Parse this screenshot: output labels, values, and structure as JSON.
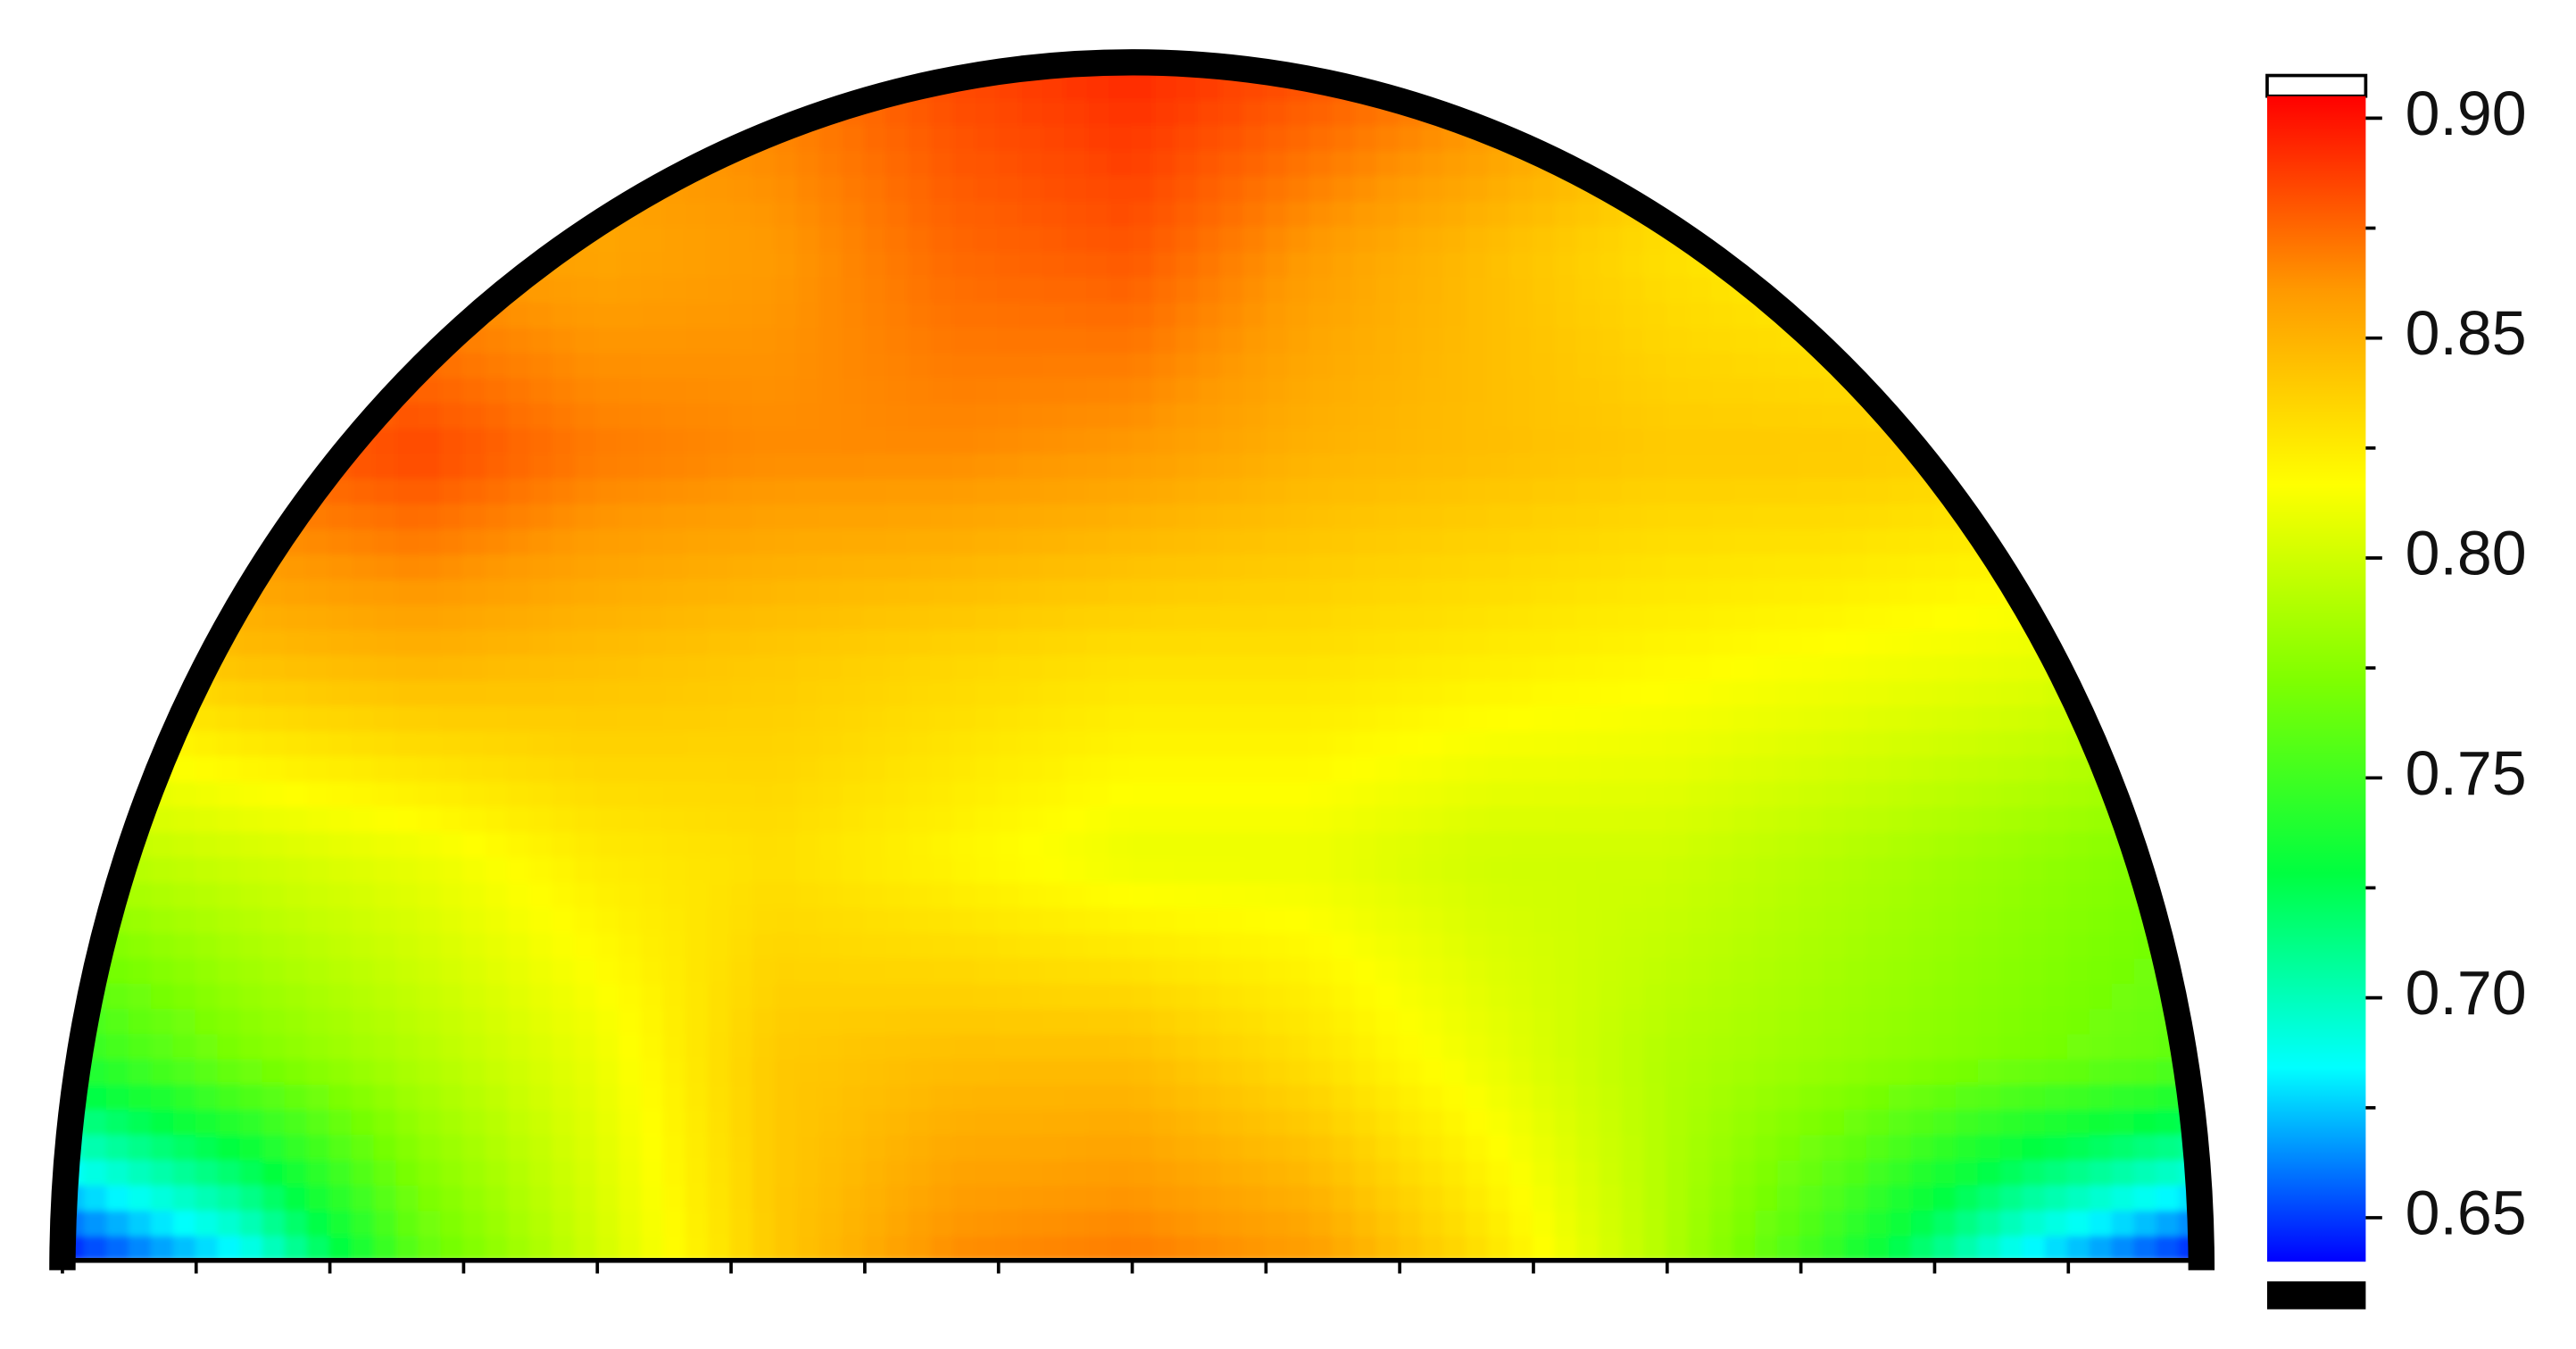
{
  "chart_data": {
    "type": "contour",
    "z": [
      [
        0.64,
        0.68,
        0.76,
        0.8,
        0.84,
        0.865,
        0.87,
        0.86,
        0.83,
        0.79,
        0.74,
        0.68,
        0.64
      ],
      [
        0.74,
        0.77,
        0.79,
        0.81,
        0.84,
        0.845,
        0.845,
        0.83,
        0.81,
        0.79,
        0.78,
        0.77,
        0.76
      ],
      [
        0.79,
        0.8,
        0.81,
        0.825,
        0.83,
        0.82,
        0.81,
        0.81,
        0.8,
        0.8,
        0.79,
        0.78,
        0.77
      ],
      [
        0.83,
        0.845,
        0.85,
        0.845,
        0.84,
        0.835,
        0.83,
        0.83,
        0.825,
        0.82,
        0.815,
        0.81,
        0.8
      ],
      [
        0.86,
        0.875,
        0.885,
        0.87,
        0.865,
        0.865,
        0.86,
        0.85,
        0.845,
        0.84,
        0.84,
        0.835,
        0.83
      ],
      [
        0.86,
        0.86,
        0.86,
        0.855,
        0.86,
        0.875,
        0.88,
        0.86,
        0.845,
        0.83,
        0.82,
        0.82,
        0.82
      ],
      [
        0.86,
        0.86,
        0.86,
        0.86,
        0.87,
        0.885,
        0.895,
        0.885,
        0.87,
        0.85,
        0.84,
        0.83,
        0.83
      ]
    ],
    "zlim": [
      0.64,
      0.905
    ],
    "colormap": [
      "#0000ff",
      "#00ffff",
      "#00ff40",
      "#80ff00",
      "#ffff00",
      "#ff9900",
      "#ff0000"
    ],
    "over_color": "#ffffff",
    "under_color": "#000000",
    "zticks": [
      {
        "value": 0.9,
        "label": "0.90"
      },
      0.85,
      {
        "value": 0.8,
        "label": "0.80"
      },
      0.75,
      {
        "value": 0.7,
        "label": "0.70"
      },
      0.65
    ],
    "zminorticks": [
      0.875,
      0.825,
      0.775,
      0.725,
      0.675
    ]
  }
}
